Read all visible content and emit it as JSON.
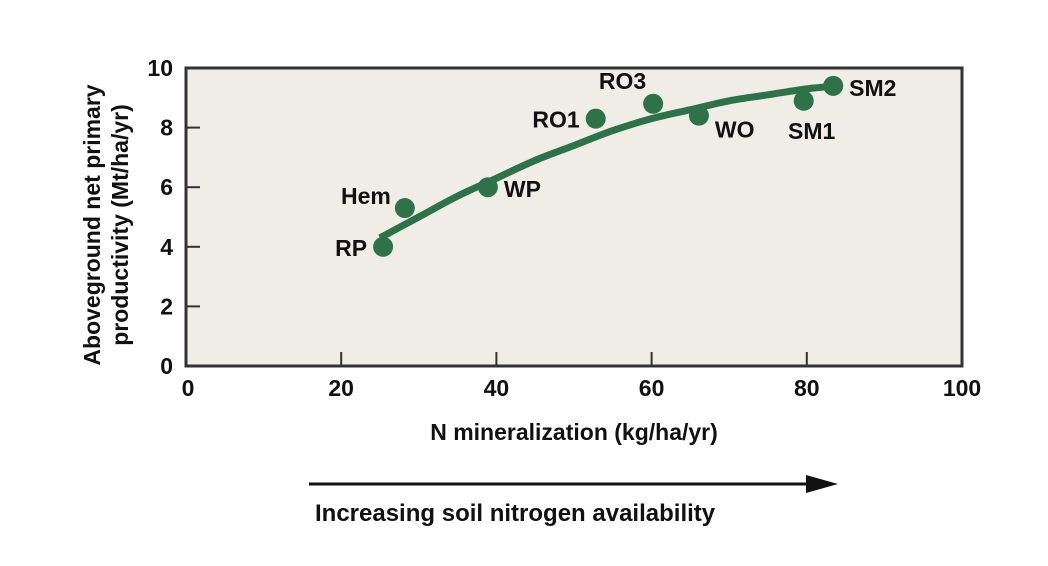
{
  "chart_data": {
    "type": "scatter",
    "title": "",
    "xlabel": "N mineralization (kg/ha/yr)",
    "ylabel_line1": "Aboveground net primary",
    "ylabel_line2": "productivity (Mt/ha/yr)",
    "xlim": [
      0,
      100
    ],
    "ylim": [
      0,
      10
    ],
    "x_ticks": [
      0,
      20,
      40,
      60,
      80,
      100
    ],
    "y_ticks": [
      0,
      2,
      4,
      6,
      8,
      10
    ],
    "x_tick_labels": [
      "0",
      "20",
      "40",
      "60",
      "80",
      "100"
    ],
    "y_tick_labels": [
      "0",
      "2",
      "4",
      "6",
      "8",
      "10"
    ],
    "grid": false,
    "legend": null,
    "points": [
      {
        "label": "RP",
        "x": 25.4,
        "y": 4.0,
        "label_pos": "left"
      },
      {
        "label": "Hem",
        "x": 28.2,
        "y": 5.3,
        "label_pos": "upper-left"
      },
      {
        "label": "WP",
        "x": 38.9,
        "y": 6.0,
        "label_pos": "right"
      },
      {
        "label": "RO1",
        "x": 52.8,
        "y": 8.3,
        "label_pos": "left"
      },
      {
        "label": "RO3",
        "x": 60.2,
        "y": 8.8,
        "label_pos": "upper-left"
      },
      {
        "label": "WO",
        "x": 66.1,
        "y": 8.4,
        "label_pos": "lower-right"
      },
      {
        "label": "SM1",
        "x": 79.6,
        "y": 8.9,
        "label_pos": "below"
      },
      {
        "label": "SM2",
        "x": 83.4,
        "y": 9.4,
        "label_pos": "right"
      }
    ],
    "trend_curve": {
      "description": "saturating fitted curve",
      "x": [
        25,
        30,
        35,
        40,
        45,
        50,
        55,
        60,
        65,
        70,
        75,
        80,
        84
      ],
      "y": [
        4.3,
        5.0,
        5.7,
        6.3,
        6.9,
        7.4,
        7.9,
        8.3,
        8.6,
        8.9,
        9.1,
        9.3,
        9.4
      ]
    },
    "annotation": {
      "arrow_text": "Increasing soil nitrogen availability",
      "arrow_direction": "right"
    },
    "colors": {
      "series": "#2f7149",
      "plot_background": "#efede5",
      "frame": "#333333",
      "text": "#111111"
    }
  }
}
